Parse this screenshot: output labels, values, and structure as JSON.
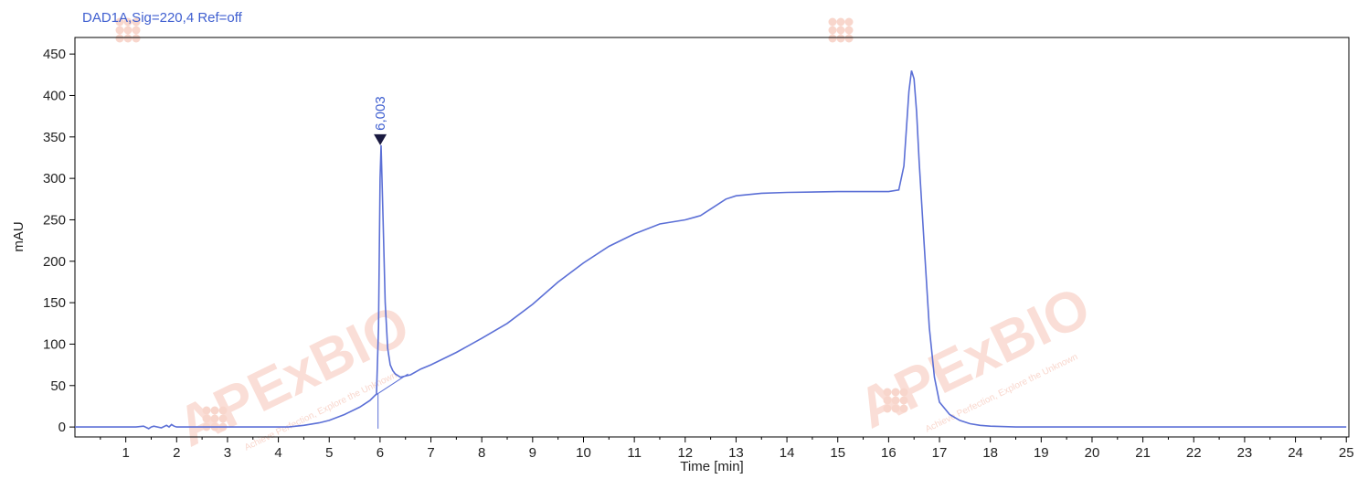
{
  "chart_data": {
    "type": "line",
    "title": "DAD1A,Sig=220,4  Ref=off",
    "xlabel": "Time [min]",
    "ylabel": "mAU",
    "xlim": [
      0,
      25.05
    ],
    "ylim": [
      -12,
      470
    ],
    "xticks": [
      1,
      2,
      3,
      4,
      5,
      6,
      7,
      8,
      9,
      10,
      11,
      12,
      13,
      14,
      15,
      16,
      17,
      18,
      19,
      20,
      21,
      22,
      23,
      24,
      25
    ],
    "yticks": [
      0,
      50,
      100,
      150,
      200,
      250,
      300,
      350,
      400,
      450
    ],
    "grid": false,
    "color": "#5b6fd6",
    "series": [
      {
        "x": [
          0,
          1.2,
          1.35,
          1.45,
          1.5,
          1.55,
          1.7,
          1.8,
          1.85,
          1.9,
          1.95,
          2.0,
          2.1,
          2.5,
          3.0,
          3.5,
          4.0,
          4.2,
          4.5,
          4.8,
          5.0,
          5.3,
          5.6,
          5.8,
          5.93,
          5.97,
          6.0,
          6.02,
          6.06,
          6.1,
          6.15,
          6.2,
          6.25,
          6.3,
          6.4,
          6.6,
          6.8,
          7.0,
          7.5,
          8.0,
          8.5,
          9.0,
          9.5,
          10.0,
          10.5,
          11.0,
          11.5,
          12.0,
          12.3,
          12.5,
          12.8,
          13.0,
          13.5,
          14.0,
          15.0,
          16.0,
          16.2,
          16.3,
          16.4,
          16.45,
          16.5,
          16.55,
          16.6,
          16.7,
          16.8,
          16.9,
          17.0,
          17.2,
          17.4,
          17.6,
          17.8,
          18.0,
          18.5,
          19.0,
          20.0,
          25.0
        ],
        "y": [
          0,
          0,
          1,
          -2,
          0,
          1,
          -1,
          2,
          0,
          3,
          1,
          0,
          0,
          0,
          0,
          0,
          0,
          0,
          2,
          5,
          8,
          15,
          24,
          32,
          40,
          120,
          300,
          340,
          250,
          150,
          95,
          75,
          68,
          64,
          60,
          63,
          70,
          75,
          90,
          107,
          125,
          148,
          175,
          198,
          218,
          233,
          245,
          250,
          255,
          263,
          275,
          279,
          282,
          283,
          284,
          284,
          286,
          315,
          405,
          430,
          420,
          380,
          320,
          220,
          120,
          60,
          30,
          15,
          8,
          4,
          2,
          1,
          0,
          0,
          0,
          0
        ]
      }
    ],
    "annotations": [
      {
        "x": 6.003,
        "y": 340,
        "text": "6,003"
      }
    ]
  },
  "watermark": {
    "brand": "APExBIO",
    "tagline": "Achieve Perfection, Explore the Unknown",
    "color": "#f4b5a3"
  }
}
